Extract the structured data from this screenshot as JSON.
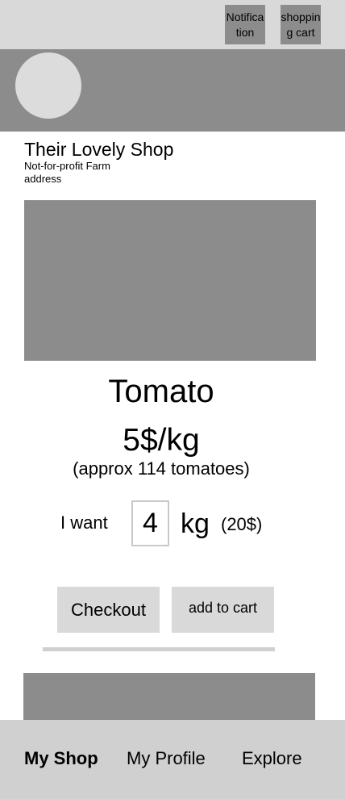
{
  "header": {
    "notification_label": "Notification",
    "cart_label": "shopping cart"
  },
  "shop": {
    "name": "Their Lovely Shop",
    "subtitle": "Not-for-profit Farm address"
  },
  "product": {
    "name": "Tomato",
    "price": "5$/kg",
    "approx": "(approx 114 tomatoes)"
  },
  "order": {
    "want_label": "I want",
    "quantity": "4",
    "unit": "kg",
    "total": "(20$)"
  },
  "actions": {
    "checkout_label": "Checkout",
    "add_to_cart_label": "add to cart"
  },
  "nav": {
    "items": [
      {
        "label": "My Shop",
        "active": true
      },
      {
        "label": "My Profile",
        "active": false
      },
      {
        "label": "Explore",
        "active": false
      }
    ]
  },
  "colors": {
    "placeholder_dark": "#8c8c8c",
    "placeholder_light": "#d9d9d9",
    "nav_background": "#d0d0d0"
  }
}
